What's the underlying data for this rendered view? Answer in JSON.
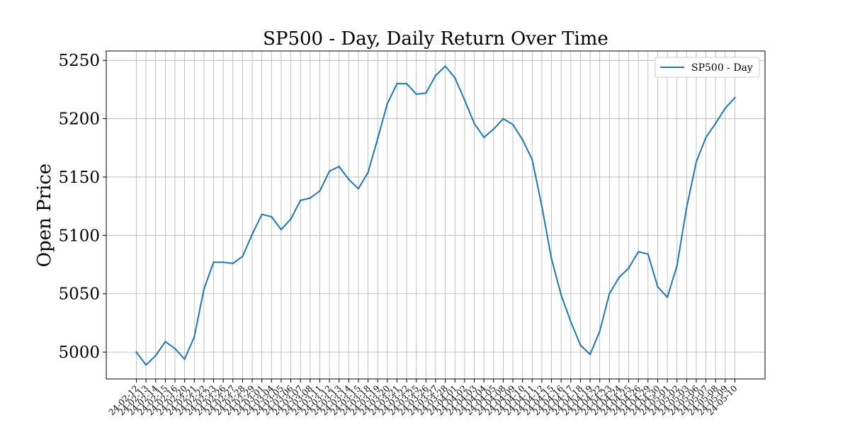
{
  "chart_data": {
    "type": "line",
    "title": "SP500 - Day, Daily Return Over Time",
    "xlabel": "",
    "ylabel": "Open Price",
    "ylim": [
      4977,
      5258
    ],
    "yticks": [
      5000,
      5050,
      5100,
      5150,
      5200,
      5250
    ],
    "grid": true,
    "legend_position": "top-right",
    "line_color": "#1f77b4",
    "x": [
      "24-02-12",
      "24-02-13",
      "24-02-14",
      "24-02-15",
      "24-02-16",
      "24-02-20",
      "24-02-21",
      "24-02-22",
      "24-02-23",
      "24-02-26",
      "24-02-27",
      "24-02-28",
      "24-02-29",
      "24-03-01",
      "24-03-04",
      "24-03-05",
      "24-03-06",
      "24-03-07",
      "24-03-08",
      "24-03-11",
      "24-03-12",
      "24-03-13",
      "24-03-14",
      "24-03-15",
      "24-03-18",
      "24-03-19",
      "24-03-20",
      "24-03-21",
      "24-03-22",
      "24-03-25",
      "24-03-26",
      "24-03-27",
      "24-03-28",
      "24-04-01",
      "24-04-02",
      "24-04-03",
      "24-04-04",
      "24-04-05",
      "24-04-08",
      "24-04-09",
      "24-04-10",
      "24-04-11",
      "24-04-12",
      "24-04-15",
      "24-04-16",
      "24-04-17",
      "24-04-18",
      "24-04-19",
      "24-04-22",
      "24-04-23",
      "24-04-24",
      "24-04-25",
      "24-04-26",
      "24-04-29",
      "24-04-30",
      "24-05-01",
      "24-05-02",
      "24-05-03",
      "24-05-06",
      "24-05-07",
      "24-05-08",
      "24-05-09",
      "24-05-10"
    ],
    "series": [
      {
        "name": "SP500 - Day",
        "values": [
          5000,
          4989,
          4997,
          5009,
          5003,
          4994,
          5013,
          5054,
          5077,
          5077,
          5076,
          5082,
          5101,
          5118,
          5116,
          5105,
          5114,
          5130,
          5132,
          5138,
          5155,
          5159,
          5148,
          5140,
          5154,
          5183,
          5213,
          5230,
          5230,
          5221,
          5222,
          5237,
          5245,
          5235,
          5216,
          5196,
          5184,
          5191,
          5200,
          5195,
          5182,
          5165,
          5125,
          5080,
          5049,
          5026,
          5006,
          4998,
          5018,
          5050,
          5064,
          5072,
          5086,
          5084,
          5056,
          5047,
          5074,
          5124,
          5163,
          5184,
          5196,
          5209,
          5218
        ]
      }
    ]
  }
}
